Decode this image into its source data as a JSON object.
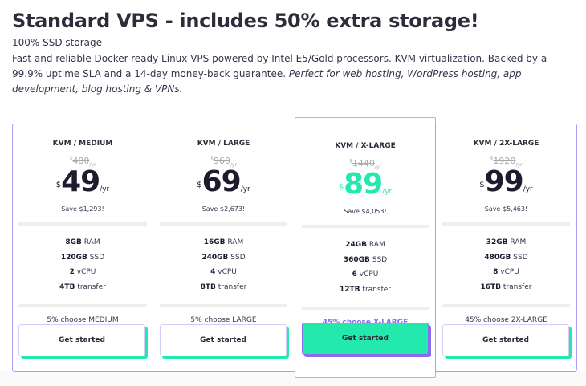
{
  "title": "Standard VPS - includes 50% extra storage!",
  "subtitle": "100% SSD storage",
  "description": "Fast and reliable Docker-ready Linux VPS powered by Intel E5/Gold processors. KVM virtualization. Backed by a 99.9% uptime SLA and a 14-day money-back guarantee.",
  "description_italic": "Perfect for web hosting, WordPress hosting, app development, blog hosting & VPNs.",
  "currency": "$",
  "per": "/yr",
  "plans": [
    {
      "name": "KVM / MEDIUM",
      "old_price": "480",
      "price": "49",
      "save": "Save $1,293!",
      "ram": "8GB",
      "ram_l": "RAM",
      "ssd": "120GB",
      "ssd_l": "SSD",
      "cpu": "2",
      "cpu_l": "vCPU",
      "transfer": "4TB",
      "transfer_l": "transfer",
      "choose": "5% choose MEDIUM",
      "button": "Get started"
    },
    {
      "name": "KVM / LARGE",
      "old_price": "960",
      "price": "69",
      "save": "Save $2,673!",
      "ram": "16GB",
      "ram_l": "RAM",
      "ssd": "240GB",
      "ssd_l": "SSD",
      "cpu": "4",
      "cpu_l": "vCPU",
      "transfer": "8TB",
      "transfer_l": "transfer",
      "choose": "5% choose LARGE",
      "button": "Get started"
    },
    {
      "name": "KVM / X-LARGE",
      "old_price": "1440",
      "price": "89",
      "save": "Save $4,053!",
      "ram": "24GB",
      "ram_l": "RAM",
      "ssd": "360GB",
      "ssd_l": "SSD",
      "cpu": "6",
      "cpu_l": "vCPU",
      "transfer": "12TB",
      "transfer_l": "transfer",
      "choose": "45% choose X-LARGE",
      "button": "Get started"
    },
    {
      "name": "KVM / 2X-LARGE",
      "old_price": "1920",
      "price": "99",
      "save": "Save $5,463!",
      "ram": "32GB",
      "ram_l": "RAM",
      "ssd": "480GB",
      "ssd_l": "SSD",
      "cpu": "8",
      "cpu_l": "vCPU",
      "transfer": "16TB",
      "transfer_l": "transfer",
      "choose": "45% choose 2X-LARGE",
      "button": "Get started"
    }
  ]
}
